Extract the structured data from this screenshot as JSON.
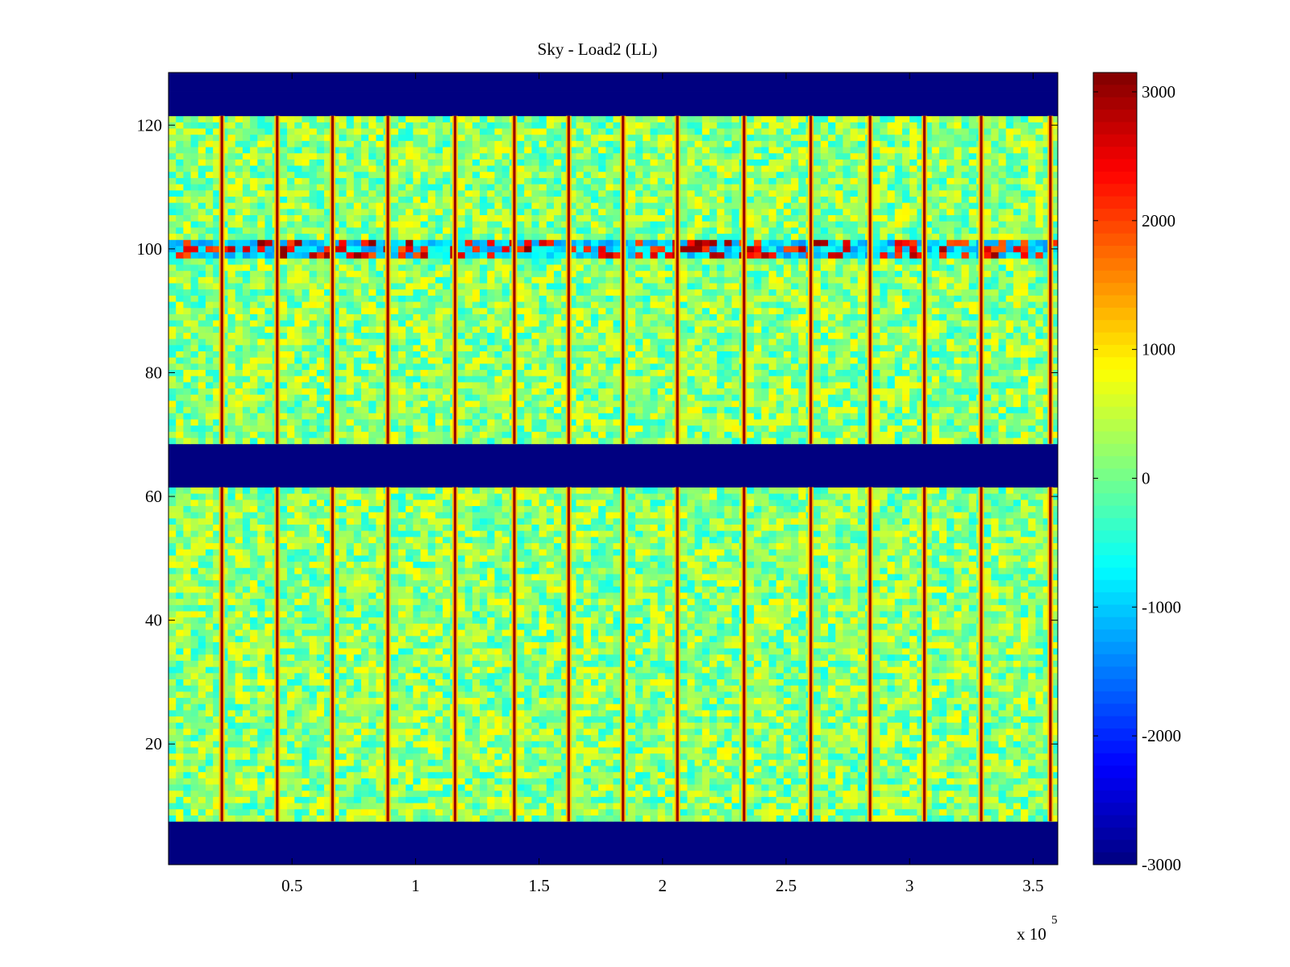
{
  "chart_data": {
    "type": "heatmap",
    "title": "Sky - Load2 (LL)",
    "xlabel": "",
    "ylabel": "",
    "x_multiplier_label": "x 10",
    "x_multiplier_exponent": "5",
    "xlim": [
      0,
      3.6
    ],
    "ylim": [
      0.5,
      128.5
    ],
    "x_ticks": [
      0.5,
      1,
      1.5,
      2,
      2.5,
      3,
      3.5
    ],
    "x_tick_labels": [
      "0.5",
      "1",
      "1.5",
      "2",
      "2.5",
      "3",
      "3.5"
    ],
    "y_ticks": [
      20,
      40,
      60,
      80,
      100,
      120
    ],
    "y_tick_labels": [
      "20",
      "40",
      "60",
      "80",
      "100",
      "120"
    ],
    "colormap": "jet",
    "clim": [
      -3000,
      3150
    ],
    "colorbar_ticks": [
      3000,
      2000,
      1000,
      0,
      -1000,
      -2000,
      -3000
    ],
    "colorbar_tick_labels": [
      "3000",
      "2000",
      "1000",
      "0",
      "-1000",
      "-2000",
      "-3000"
    ],
    "masked_row_ranges": [
      [
        0.5,
        7.5
      ],
      [
        61.5,
        68.5
      ],
      [
        121.5,
        128.5
      ]
    ],
    "masked_value": -3000,
    "background_value_range": [
      -600,
      900
    ],
    "rfi_row_band": [
      98.5,
      101.5
    ],
    "spike_columns_x": [
      0.216,
      0.44,
      0.664,
      0.888,
      1.16,
      1.4,
      1.62,
      1.84,
      2.06,
      2.33,
      2.6,
      2.84,
      3.06,
      3.29,
      3.57
    ],
    "spike_value": 3000
  }
}
